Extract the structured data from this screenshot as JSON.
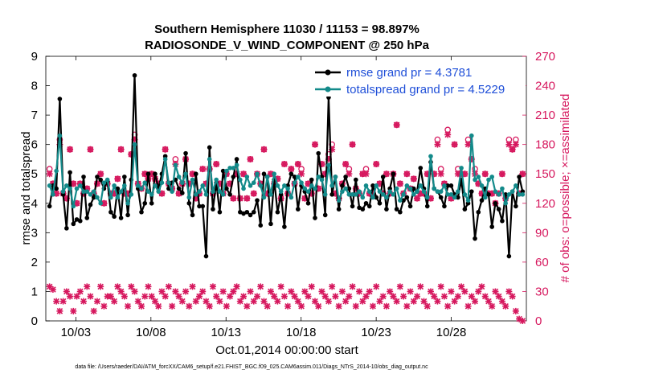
{
  "title_line1": "Southern Hemisphere 11030 / 11153 = 98.897%",
  "title_line2": "RADIOSONDE_V_WIND_COMPONENT @ 250 hPa",
  "ylabel_left": "rmse and totalspread",
  "ylabel_right": "# of obs: o=possible; ×=assimilated",
  "xlabel": "Oct.01,2014 00:00:00 start",
  "footer": "data file: /Users/raeder/DAI/ATM_forcXX/CAM6_setup/f.e21.FHIST_BGC.f09_025.CAM6assim.011/Diags_NTrS_2014-10/obs_diag_output.nc",
  "colors": {
    "rmse": "#000000",
    "spread": "#138a8a",
    "obs": "#d6185e",
    "legend_text": "#1f4fd8"
  },
  "chart_data": {
    "type": "line",
    "xlim": [
      1,
      33
    ],
    "ylim_left": [
      0,
      9
    ],
    "ylim_right": [
      0,
      270
    ],
    "xticks": [
      3,
      8,
      13,
      18,
      23,
      28
    ],
    "xtick_labels": [
      "10/03",
      "10/08",
      "10/13",
      "10/18",
      "10/23",
      "10/28"
    ],
    "yticks_left": [
      0,
      1,
      2,
      3,
      4,
      5,
      6,
      7,
      8,
      9
    ],
    "yticks_right": [
      0,
      30,
      60,
      90,
      120,
      150,
      180,
      210,
      240,
      270
    ],
    "legend": [
      "rmse grand pr = 4.3781",
      "totalspread grand pr = 4.5229"
    ],
    "series": [
      {
        "name": "rmse",
        "axis": "left",
        "values": [
          3.9,
          4.6,
          4.5,
          7.55,
          4.3,
          3.15,
          5.05,
          3.3,
          3.45,
          3.4,
          4.9,
          3.5,
          3.95,
          4.2,
          4.9,
          4.8,
          4.5,
          4.75,
          3.7,
          3.55,
          4.5,
          3.5,
          4.9,
          3.6,
          4.8,
          8.35,
          4.5,
          3.7,
          4.0,
          5.0,
          4.0,
          5.0,
          4.5,
          5.0,
          5.6,
          4.5,
          4.7,
          4.8,
          4.5,
          4.35,
          5.7,
          4.0,
          3.6,
          5.0,
          3.9,
          3.9,
          2.2,
          5.9,
          3.8,
          4.7,
          3.7,
          5.1,
          4.5,
          4.3,
          4.9,
          5.5,
          3.7,
          3.65,
          3.7,
          3.6,
          3.7,
          4.1,
          3.25,
          5.0,
          4.9,
          3.3,
          4.8,
          3.7,
          4.3,
          3.2,
          4.6,
          5.0,
          4.9,
          3.8,
          4.6,
          4.4,
          4.0,
          4.8,
          3.5,
          5.7,
          4.9,
          3.6,
          7.6,
          4.3,
          4.9,
          3.8,
          4.6,
          4.9,
          4.5,
          3.9,
          4.8,
          3.85,
          3.8,
          4.0,
          3.9,
          4.6,
          4.2,
          4.0,
          4.9,
          3.8,
          4.5,
          5.0,
          3.8,
          3.7,
          4.1,
          4.2,
          3.9,
          4.5,
          4.4,
          5.2,
          4.5,
          3.9,
          5.4,
          4.5,
          4.4,
          4.2,
          3.9,
          4.6,
          4.6,
          4.3,
          4.2,
          4.8,
          3.8,
          4.0,
          4.4,
          2.8,
          3.7,
          4.1,
          4.5,
          4.3,
          3.2,
          4.0,
          3.8,
          3.4,
          4.3,
          2.2,
          4.4,
          3.9,
          4.9,
          4.4
        ]
      },
      {
        "name": "totalspread",
        "axis": "left",
        "values": [
          4.6,
          4.3,
          5.1,
          6.3,
          4.4,
          4.6,
          4.5,
          3.9,
          4.5,
          4.6,
          4.4,
          4.4,
          4.3,
          4.4,
          4.2,
          4.0,
          4.7,
          4.8,
          4.2,
          4.6,
          4.2,
          4.4,
          4.6,
          4.0,
          4.3,
          6.0,
          4.6,
          4.5,
          4.7,
          4.4,
          4.3,
          4.6,
          4.4,
          4.7,
          5.5,
          4.7,
          4.4,
          5.3,
          4.9,
          4.7,
          5.0,
          4.2,
          4.8,
          4.3,
          4.4,
          4.6,
          4.3,
          5.5,
          4.4,
          4.8,
          4.4,
          4.3,
          5.1,
          5.2,
          5.2,
          5.3,
          4.8,
          4.5,
          4.9,
          4.6,
          4.7,
          5.0,
          4.6,
          4.2,
          4.9,
          4.3,
          5.0,
          4.6,
          4.4,
          4.6,
          4.5,
          4.2,
          4.7,
          4.9,
          4.7,
          4.5,
          4.4,
          4.6,
          4.5,
          4.9,
          4.8,
          4.3,
          5.3,
          4.6,
          4.9,
          4.1,
          4.4,
          4.5,
          4.3,
          4.3,
          4.3,
          4.4,
          4.2,
          4.6,
          4.4,
          4.2,
          4.6,
          4.4,
          4.3,
          4.2,
          4.4,
          4.3,
          4.5,
          4.1,
          4.3,
          4.6,
          4.5,
          4.3,
          4.4,
          4.6,
          4.4,
          4.2,
          5.6,
          4.5,
          4.4,
          4.4,
          4.6,
          4.3,
          4.3,
          4.2,
          4.4,
          5.2,
          4.3,
          4.1,
          6.3,
          4.8,
          4.9,
          4.6,
          4.2,
          4.8,
          4.9,
          4.4,
          4.3,
          4.5,
          4.0,
          4.3,
          4.4,
          4.6,
          4.3,
          4.3
        ]
      },
      {
        "name": "obs_possible",
        "axis": "right",
        "values": [
          155,
          140,
          130,
          185,
          130,
          125,
          175,
          140,
          120,
          140,
          130,
          135,
          175,
          130,
          140,
          150,
          120,
          140,
          130,
          130,
          145,
          175,
          130,
          130,
          170,
          190,
          140,
          135,
          150,
          145,
          150,
          145,
          140,
          130,
          175,
          140,
          135,
          165,
          130,
          140,
          165,
          140,
          150,
          125,
          130,
          155,
          140,
          155,
          130,
          160,
          140,
          130,
          150,
          140,
          125,
          150,
          125,
          150,
          125,
          165,
          130,
          150,
          140,
          175,
          130,
          150,
          140,
          145,
          125,
          160,
          130,
          155,
          140,
          160,
          155,
          125,
          140,
          130,
          180,
          135,
          160,
          150,
          170,
          180,
          130,
          125,
          140,
          160,
          155,
          180,
          135,
          130,
          150,
          155,
          130,
          130,
          160,
          140,
          130,
          150,
          130,
          150,
          200,
          140,
          130,
          150,
          135,
          145,
          125,
          130,
          130,
          150,
          125,
          150,
          185,
          155,
          140,
          195,
          125,
          180,
          155,
          150,
          150,
          185,
          165,
          155,
          140,
          130,
          150,
          130,
          130,
          120,
          130,
          150,
          125,
          185,
          175,
          185,
          130,
          150
        ]
      },
      {
        "name": "obs_assimilated",
        "axis": "right",
        "values": [
          150,
          140,
          130,
          180,
          130,
          125,
          175,
          140,
          120,
          140,
          130,
          135,
          175,
          130,
          140,
          150,
          120,
          140,
          130,
          130,
          145,
          175,
          130,
          130,
          170,
          185,
          140,
          135,
          150,
          145,
          150,
          145,
          140,
          130,
          175,
          140,
          135,
          160,
          130,
          140,
          165,
          140,
          150,
          125,
          130,
          155,
          140,
          155,
          130,
          160,
          140,
          130,
          150,
          140,
          125,
          150,
          125,
          150,
          125,
          165,
          130,
          150,
          140,
          175,
          130,
          150,
          140,
          145,
          125,
          160,
          130,
          155,
          140,
          160,
          150,
          125,
          140,
          130,
          180,
          135,
          160,
          150,
          165,
          175,
          130,
          125,
          140,
          160,
          150,
          180,
          135,
          130,
          150,
          150,
          130,
          130,
          160,
          140,
          130,
          150,
          130,
          150,
          200,
          140,
          130,
          150,
          135,
          145,
          125,
          130,
          130,
          150,
          125,
          150,
          180,
          150,
          140,
          190,
          125,
          180,
          150,
          150,
          150,
          180,
          165,
          150,
          140,
          130,
          150,
          130,
          130,
          120,
          130,
          150,
          125,
          180,
          175,
          180,
          130,
          150
        ]
      },
      {
        "name": "obs_low_possible",
        "axis": "right",
        "values": [
          35,
          32,
          20,
          10,
          20,
          30,
          25,
          10,
          25,
          30,
          20,
          35,
          25,
          10,
          20,
          35,
          15,
          25,
          25,
          20,
          35,
          30,
          25,
          15,
          35,
          30,
          20,
          15,
          25,
          35,
          25,
          20,
          15,
          30,
          25,
          35,
          15,
          30,
          25,
          20,
          30,
          15,
          35,
          20,
          25,
          30,
          20,
          15,
          35,
          25,
          20,
          30,
          15,
          25,
          30,
          35,
          20,
          25,
          15,
          30,
          20,
          25,
          35,
          20,
          15,
          30,
          25,
          20,
          35,
          25,
          15,
          30,
          25,
          20,
          15,
          30,
          25,
          35,
          20,
          15,
          30,
          25,
          20,
          35,
          25,
          15,
          30,
          20,
          25,
          35,
          15,
          30,
          20,
          25,
          30,
          15,
          35,
          20,
          25,
          15,
          30,
          25,
          20,
          35,
          25,
          15,
          30,
          20,
          25,
          35,
          20,
          15,
          30,
          25,
          20,
          35,
          25,
          15,
          30,
          20,
          25,
          35,
          30,
          15,
          25,
          20,
          30,
          35,
          25,
          20,
          15,
          30,
          25,
          20,
          15,
          30,
          25,
          10,
          2,
          0
        ]
      }
    ]
  }
}
